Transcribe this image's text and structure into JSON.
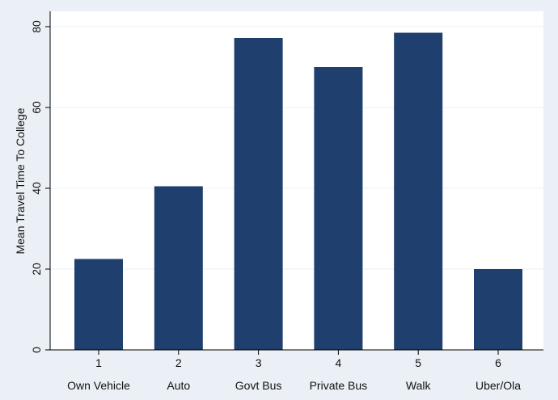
{
  "chart_data": {
    "type": "bar",
    "title": "",
    "xlabel": "",
    "ylabel": "Mean Travel Time To College",
    "ylim": [
      0,
      80
    ],
    "yticks": [
      0,
      20,
      40,
      60,
      80
    ],
    "categories": [
      "1",
      "2",
      "3",
      "4",
      "5",
      "6"
    ],
    "category_names": [
      "Own Vehicle",
      "Auto",
      "Govt Bus",
      "Private Bus",
      "Walk",
      "Uber/Ola"
    ],
    "values": [
      22.5,
      40.5,
      77.2,
      70,
      78.5,
      20
    ],
    "grid": false,
    "legend": "none",
    "colors": {
      "bar": "#1f3f6e",
      "background": "#eaf0f5",
      "plot": "#ffffff",
      "axis": "#000000"
    }
  }
}
